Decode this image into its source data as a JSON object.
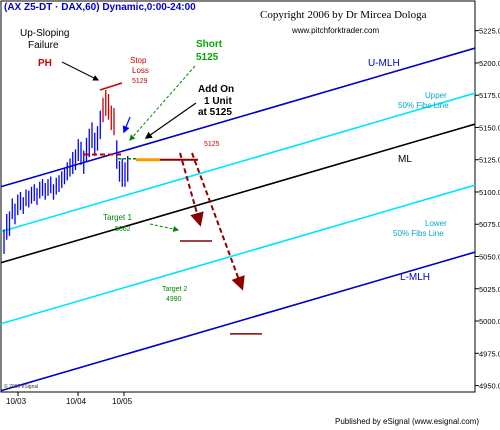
{
  "chart_data": {
    "type": "line",
    "header": "(AX Z5-DT · DAX,60) Dynamic,0:00-24:00",
    "copyright": "Copyright 2006 by Dr Mircea Dologa",
    "website": "www.pitchforktrader.com",
    "title": "",
    "xlabel": "",
    "ylabel": "",
    "ylim": [
      4945,
      5248
    ],
    "y_ticks": [
      4950,
      4975,
      5000,
      5025,
      5050,
      5075,
      5100,
      5125,
      5150,
      5175,
      5200,
      5225
    ],
    "y_tick_labels": [
      "4950.00",
      "4975.00",
      "5000.00",
      "5025.00",
      "5050.00",
      "5075.00",
      "5100.00",
      "5125.00",
      "5150.00",
      "5175.00",
      "5200.00",
      "5225.00"
    ],
    "x_tick_labels": [
      "10/03",
      "10/04",
      "10/05"
    ],
    "footer_left": "© 2006 eSignal",
    "footer_right": "Published by eSignal (www.esignal.com)",
    "colors": {
      "price_bars": "#0000ff",
      "reversal_bars": "#cc0000",
      "median_line": "#000000",
      "mlh": "#0000cc",
      "fibs": "#00e5ff",
      "annotation_red": "#cc0000",
      "annotation_green": "#008800",
      "projection": "#8b0000",
      "add_on_marker": "#ff9900",
      "axis_bg": "#ffffff"
    },
    "lines": [
      {
        "name": "U-MLH",
        "label": "U-MLH",
        "kind": "mlh"
      },
      {
        "name": "Upper 50% Fibs Line",
        "label": "Upper\n50% Fibs Line",
        "kind": "fibs"
      },
      {
        "name": "ML",
        "label": "ML",
        "kind": "median"
      },
      {
        "name": "Lower 50% Fibs Line",
        "label": "Lower\n50% Fibs Line",
        "kind": "fibs"
      },
      {
        "name": "L-MLH",
        "label": "L-MLH",
        "kind": "mlh"
      }
    ],
    "price_bars": [
      {
        "h": 5071,
        "l": 5052
      },
      {
        "h": 5083,
        "l": 5063
      },
      {
        "h": 5085,
        "l": 5066
      },
      {
        "h": 5095,
        "l": 5079
      },
      {
        "h": 5091,
        "l": 5075
      },
      {
        "h": 5098,
        "l": 5082
      },
      {
        "h": 5100,
        "l": 5086
      },
      {
        "h": 5096,
        "l": 5083
      },
      {
        "h": 5102,
        "l": 5089
      },
      {
        "h": 5101,
        "l": 5088
      },
      {
        "h": 5104,
        "l": 5091
      },
      {
        "h": 5106,
        "l": 5093
      },
      {
        "h": 5103,
        "l": 5090
      },
      {
        "h": 5108,
        "l": 5095
      },
      {
        "h": 5110,
        "l": 5097
      },
      {
        "h": 5107,
        "l": 5094
      },
      {
        "h": 5110,
        "l": 5097
      },
      {
        "h": 5112,
        "l": 5099
      },
      {
        "h": 5106,
        "l": 5094
      },
      {
        "h": 5111,
        "l": 5098
      },
      {
        "h": 5113,
        "l": 5100
      },
      {
        "h": 5116,
        "l": 5103
      },
      {
        "h": 5119,
        "l": 5106
      },
      {
        "h": 5123,
        "l": 5109
      },
      {
        "h": 5126,
        "l": 5112
      },
      {
        "h": 5131,
        "l": 5114
      },
      {
        "h": 5133,
        "l": 5117
      },
      {
        "h": 5141,
        "l": 5124
      },
      {
        "h": 5139,
        "l": 5121
      },
      {
        "h": 5132,
        "l": 5114
      },
      {
        "h": 5142,
        "l": 5124
      },
      {
        "h": 5149,
        "l": 5127
      },
      {
        "h": 5154,
        "l": 5134
      },
      {
        "h": 5146,
        "l": 5128
      },
      {
        "h": 5151,
        "l": 5132
      },
      {
        "h": 5163,
        "l": 5141
      },
      {
        "h": 5173,
        "l": 5154
      },
      {
        "h": 5179,
        "l": 5159
      },
      {
        "h": 5176,
        "l": 5156
      },
      {
        "h": 5167,
        "l": 5148
      },
      {
        "h": 5165,
        "l": 5144
      },
      {
        "h": 5140,
        "l": 5118
      },
      {
        "h": 5124,
        "l": 5108
      },
      {
        "h": 5126,
        "l": 5104
      },
      {
        "h": 5123,
        "l": 5104
      },
      {
        "h": 5128,
        "l": 5108
      }
    ],
    "annotations": {
      "up_sloping": "Up-Sloping",
      "failure": "Failure",
      "ph": "PH",
      "stop": "Stop",
      "loss": "Loss",
      "stop_value": "5129",
      "short": "Short",
      "short_value": "5125",
      "add_on_1": "Add On",
      "add_on_2": "1 Unit",
      "add_on_3": "at 5125",
      "entry_value": "5125",
      "target1": "Target 1",
      "target1_value": "5062",
      "target2": "Target 2",
      "target2_value": "4990"
    },
    "levels": {
      "stop": 5129,
      "entry": 5125,
      "target1": 5062,
      "target2": 4990
    },
    "grid": false
  }
}
